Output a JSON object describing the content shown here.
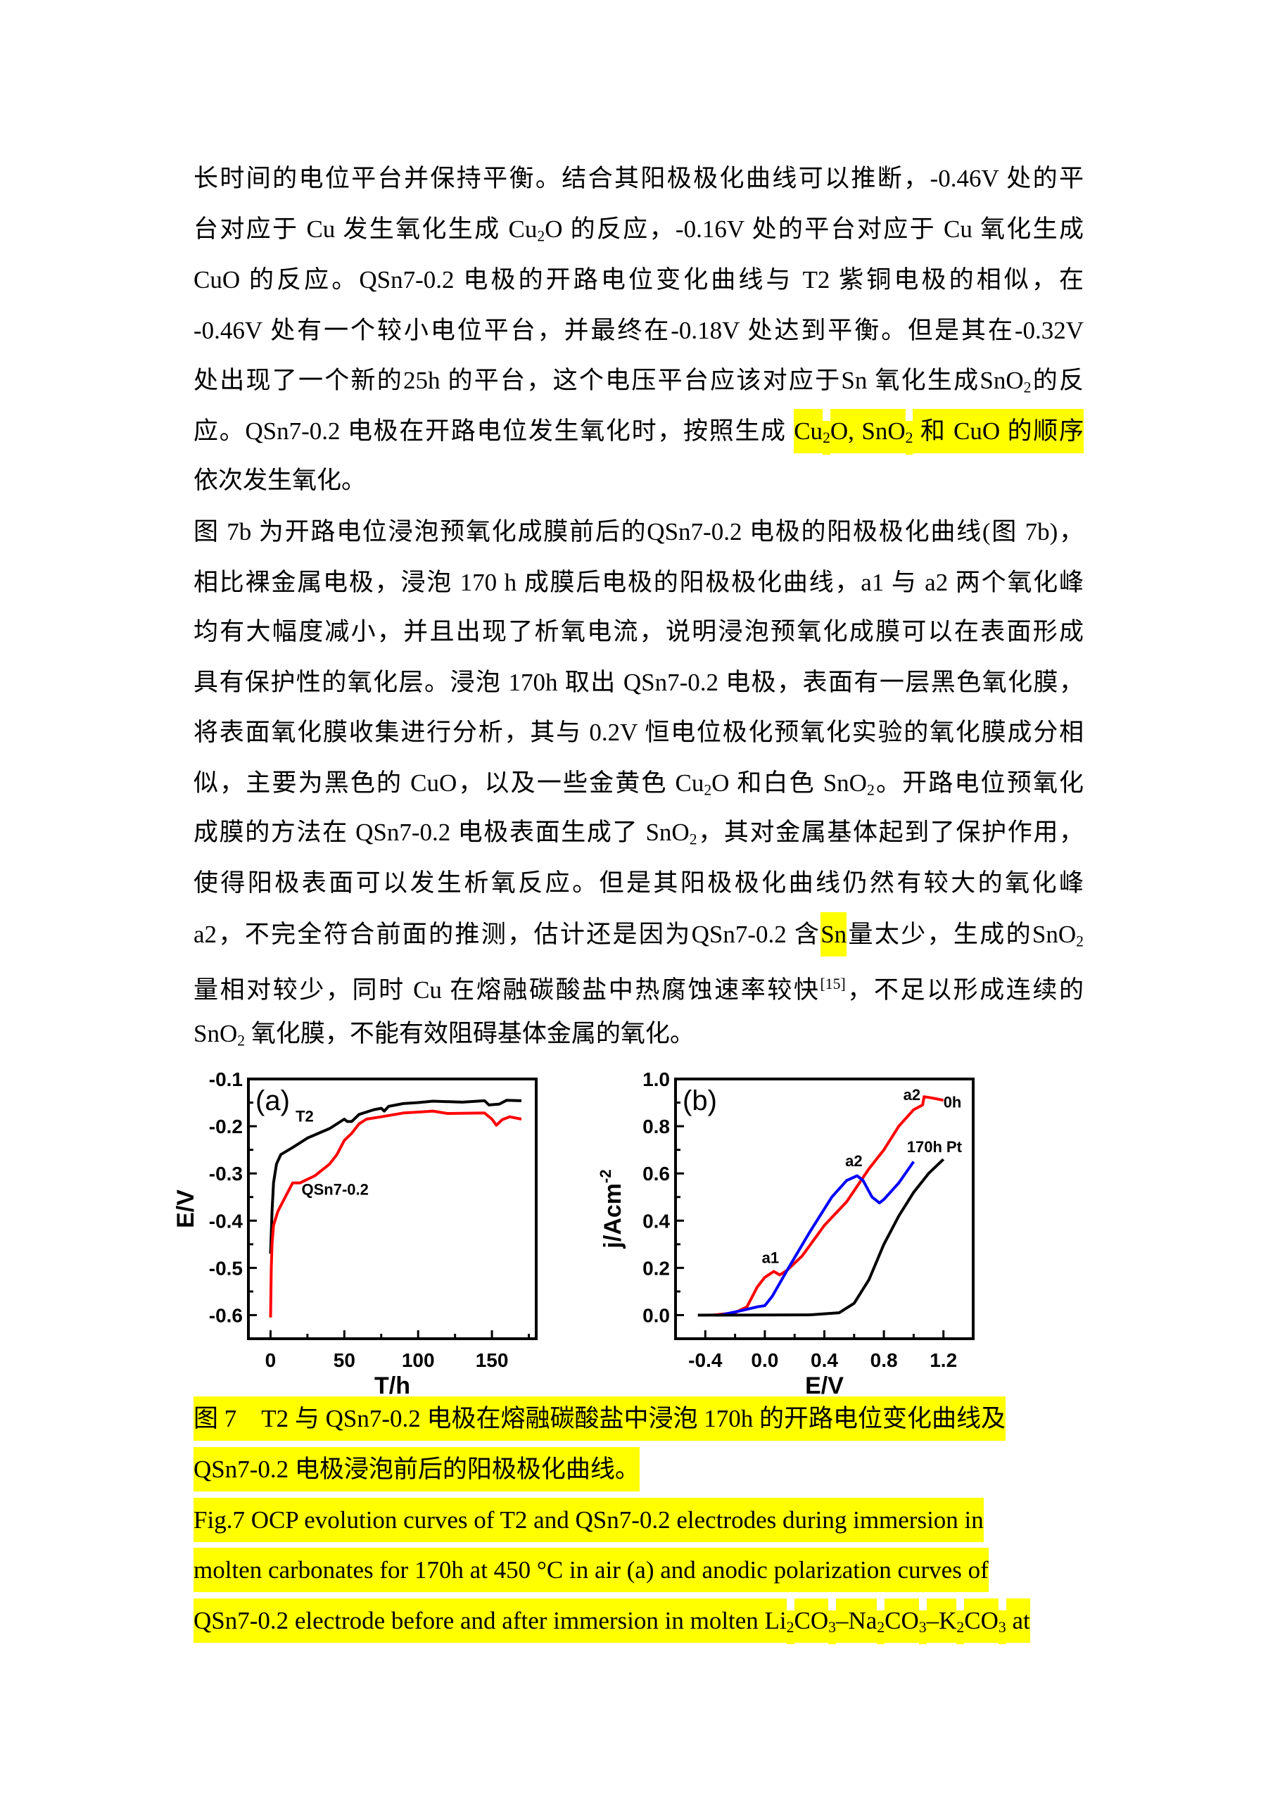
{
  "body_lines": [
    [
      [
        "长时间的电位平台并保持平衡。结合其阳极极化曲线可以推断，-0.46V 处的平",
        ""
      ]
    ],
    [
      [
        "台对应于 Cu 发生氧化生成 Cu",
        ""
      ],
      [
        "2",
        "sub"
      ],
      [
        "O 的反应，-0.16V 处的平台对应于 Cu 氧化生成",
        ""
      ]
    ],
    [
      [
        "CuO 的反应。QSn7-0.2 电极的开路电位变化曲线与 T2 紫铜电极的相似，在",
        ""
      ]
    ],
    [
      [
        "-0.46V 处有一个较小电位平台，并最终在-0.18V 处达到平衡。但是其在-0.32V",
        ""
      ]
    ],
    [
      [
        "处出现了一个新的25h 的平台，这个电压平台应该对应于Sn 氧化生成SnO",
        ""
      ],
      [
        "2",
        "sub"
      ],
      [
        "的反",
        ""
      ]
    ],
    [
      [
        "应。QSn7-0.2 电极在开路电位发生氧化时，按照生成 ",
        ""
      ],
      [
        "Cu",
        "hl"
      ],
      [
        "2",
        "hl sub"
      ],
      [
        "O, SnO",
        "hl"
      ],
      [
        "2",
        "hl sub"
      ],
      [
        " 和 CuO 的顺序",
        "hl"
      ]
    ],
    [
      [
        "依次发生氧化。",
        ""
      ]
    ],
    [
      [
        "图 7b 为开路电位浸泡预氧化成膜前后的QSn7-0.2 电极的阳极极化曲线(图 7b)，",
        ""
      ]
    ],
    [
      [
        "相比裸金属电极，浸泡 170 h 成膜后电极的阳极极化曲线，a1 与 a2 两个氧化峰",
        ""
      ]
    ],
    [
      [
        "均有大幅度减小，并且出现了析氧电流，说明浸泡预氧化成膜可以在表面形成",
        ""
      ]
    ],
    [
      [
        "具有保护性的氧化层。浸泡 170h 取出 QSn7-0.2 电极，表面有一层黑色氧化膜，",
        ""
      ]
    ],
    [
      [
        "将表面氧化膜收集进行分析，其与 0.2V 恒电位极化预氧化实验的氧化膜成分相",
        ""
      ]
    ],
    [
      [
        "似，主要为黑色的 CuO，以及一些金黄色 Cu",
        ""
      ],
      [
        "2",
        "sub"
      ],
      [
        "O 和白色 SnO",
        ""
      ],
      [
        "2",
        "sub"
      ],
      [
        "。开路电位预氧化",
        ""
      ]
    ],
    [
      [
        "成膜的方法在 QSn7-0.2 电极表面生成了 SnO",
        ""
      ],
      [
        "2",
        "sub"
      ],
      [
        "，其对金属基体起到了保护作用，",
        ""
      ]
    ],
    [
      [
        "使得阳极表面可以发生析氧反应。但是其阳极极化曲线仍然有较大的氧化峰",
        ""
      ]
    ],
    [
      [
        "a2，不完全符合前面的推测，估计还是因为QSn7-0.2 含",
        ""
      ],
      [
        "Sn",
        "hl"
      ],
      [
        "量太少，生成的SnO",
        ""
      ],
      [
        "2",
        "sub"
      ]
    ],
    [
      [
        "量相对较少，同时 Cu 在熔融碳酸盐中热腐蚀速率较快",
        ""
      ],
      [
        "[15]",
        "sup"
      ],
      [
        "，不足以形成连续的",
        ""
      ]
    ],
    [
      [
        "SnO",
        ""
      ],
      [
        "2",
        "sub"
      ],
      [
        " 氧化膜，不能有效阻碍基体金属的氧化。",
        ""
      ]
    ]
  ],
  "caption_lines": [
    [
      [
        "图 7　T2 与 QSn7-0.2 电极在熔融碳酸盐中浸泡 170h 的开路电位变化曲线及",
        "hl"
      ]
    ],
    [
      [
        "QSn7-0.2 电极浸泡前后的阳极极化曲线。",
        "hl"
      ]
    ],
    [
      [
        "Fig.7 OCP evolution curves of T2 and QSn7-0.2 electrodes during immersion in",
        "hl"
      ]
    ],
    [
      [
        "molten carbonates for 170h at 450 °C in air (a) and anodic polarization curves of",
        "hl"
      ]
    ],
    [
      [
        "QSn7-0.2 electrode before and after immersion in molten Li",
        "hl"
      ],
      [
        "2",
        "hl sub"
      ],
      [
        "CO",
        "hl"
      ],
      [
        "3",
        "hl sub"
      ],
      [
        "–Na",
        "hl"
      ],
      [
        "2",
        "hl sub"
      ],
      [
        "CO",
        "hl"
      ],
      [
        "3",
        "hl sub"
      ],
      [
        "–K",
        "hl"
      ],
      [
        "2",
        "hl sub"
      ],
      [
        "CO",
        "hl"
      ],
      [
        "3",
        "hl sub"
      ],
      [
        " at",
        "hl"
      ]
    ]
  ],
  "highlight_color": "#ffff00",
  "chart_data": [
    {
      "type": "line",
      "panel_label": "(a)",
      "xlabel": "T/h",
      "ylabel": "E/V",
      "xlim": [
        -15,
        180
      ],
      "ylim": [
        -0.65,
        -0.1
      ],
      "xticks": [
        0,
        50,
        100,
        150
      ],
      "xtick_labels": [
        "0",
        "50",
        "100",
        "150"
      ],
      "yticks": [
        -0.1,
        -0.2,
        -0.3,
        -0.4,
        -0.5,
        -0.6
      ],
      "ytick_labels": [
        "-0.1",
        "-0.2",
        "-0.3",
        "-0.4",
        "-0.5",
        "-0.6"
      ],
      "grid": false,
      "series": [
        {
          "name": "T2",
          "color": "#000000",
          "x": [
            0,
            1,
            2,
            4,
            7,
            15,
            25,
            40,
            50,
            52,
            55,
            60,
            70,
            75,
            77,
            80,
            90,
            100,
            110,
            130,
            145,
            148,
            155,
            160,
            170
          ],
          "y": [
            -0.47,
            -0.38,
            -0.32,
            -0.28,
            -0.26,
            -0.245,
            -0.225,
            -0.205,
            -0.185,
            -0.19,
            -0.19,
            -0.175,
            -0.165,
            -0.162,
            -0.168,
            -0.158,
            -0.152,
            -0.15,
            -0.147,
            -0.149,
            -0.146,
            -0.155,
            -0.153,
            -0.145,
            -0.146
          ]
        },
        {
          "name": "QSn7-0.2",
          "color": "#ff0000",
          "x": [
            0,
            0.5,
            1,
            2,
            5,
            10,
            15,
            20,
            30,
            40,
            45,
            50,
            55,
            60,
            65,
            75,
            90,
            100,
            110,
            120,
            145,
            150,
            153,
            157,
            162,
            170
          ],
          "y": [
            -0.605,
            -0.5,
            -0.45,
            -0.41,
            -0.38,
            -0.35,
            -0.32,
            -0.32,
            -0.305,
            -0.28,
            -0.26,
            -0.23,
            -0.215,
            -0.195,
            -0.185,
            -0.18,
            -0.172,
            -0.17,
            -0.168,
            -0.173,
            -0.172,
            -0.185,
            -0.198,
            -0.186,
            -0.18,
            -0.185
          ]
        }
      ],
      "annotations": [
        {
          "text": "T2",
          "x": 17,
          "y": -0.19
        },
        {
          "text": "QSn7-0.2",
          "x": 21,
          "y": -0.345
        }
      ]
    },
    {
      "type": "line",
      "panel_label": "(b)",
      "xlabel": "E/V",
      "ylabel": "j/Acm",
      "ylabel_sup": "-2",
      "xlim": [
        -0.6,
        1.4
      ],
      "ylim": [
        -0.1,
        1.0
      ],
      "xticks": [
        -0.4,
        0.0,
        0.4,
        0.8,
        1.2
      ],
      "xtick_labels": [
        "-0.4",
        "0.0",
        "0.4",
        "0.8",
        "1.2"
      ],
      "yticks": [
        0.0,
        0.2,
        0.4,
        0.6,
        0.8,
        1.0
      ],
      "ytick_labels": [
        "0.0",
        "0.2",
        "0.4",
        "0.6",
        "0.8",
        "1.0"
      ],
      "grid": false,
      "series": [
        {
          "name": "0h",
          "color": "#ff0000",
          "x": [
            -0.35,
            -0.2,
            -0.12,
            -0.05,
            0.0,
            0.06,
            0.1,
            0.15,
            0.25,
            0.4,
            0.55,
            0.7,
            0.8,
            0.9,
            1.0,
            1.06,
            1.07,
            1.12,
            1.2
          ],
          "y": [
            0,
            0.01,
            0.035,
            0.12,
            0.16,
            0.185,
            0.17,
            0.19,
            0.25,
            0.38,
            0.48,
            0.62,
            0.7,
            0.8,
            0.87,
            0.89,
            0.925,
            0.92,
            0.91
          ]
        },
        {
          "name": "170h",
          "color": "#0000ff",
          "x": [
            -0.3,
            -0.15,
            -0.05,
            0.0,
            0.05,
            0.15,
            0.3,
            0.45,
            0.55,
            0.62,
            0.66,
            0.72,
            0.77,
            0.8,
            0.9,
            1.0
          ],
          "y": [
            0,
            0.02,
            0.035,
            0.04,
            0.08,
            0.19,
            0.35,
            0.5,
            0.57,
            0.59,
            0.57,
            0.5,
            0.475,
            0.49,
            0.56,
            0.65
          ]
        },
        {
          "name": "Pt",
          "color": "#000000",
          "x": [
            -0.45,
            0.3,
            0.5,
            0.6,
            0.7,
            0.8,
            0.9,
            1.0,
            1.1,
            1.2
          ],
          "y": [
            0,
            0.001,
            0.01,
            0.05,
            0.15,
            0.3,
            0.42,
            0.52,
            0.6,
            0.66
          ]
        }
      ],
      "annotations": [
        {
          "text": "a1",
          "x": -0.02,
          "y": 0.22
        },
        {
          "text": "a2",
          "x": 0.54,
          "y": 0.63
        },
        {
          "text": "a2",
          "x": 0.93,
          "y": 0.91
        },
        {
          "text": "0h",
          "x": 1.2,
          "y": 0.88
        },
        {
          "text": "170h",
          "x": 1.02,
          "y": 0.69
        },
        {
          "text": "Pt",
          "x": 1.22,
          "y": 0.69
        }
      ]
    }
  ]
}
